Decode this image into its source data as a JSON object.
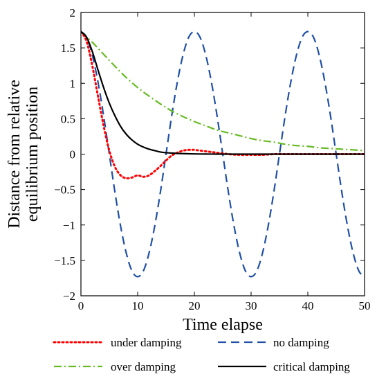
{
  "chart_data": {
    "type": "line",
    "title": "",
    "xlabel": "Time elapse",
    "ylabel_lines": [
      "Distance from relative",
      "equilibrium position"
    ],
    "xlim": [
      0,
      50
    ],
    "ylim": [
      -2,
      2
    ],
    "x_ticks": [
      0,
      10,
      20,
      30,
      40,
      50
    ],
    "y_ticks": [
      -2,
      -1.5,
      -1,
      -0.5,
      0,
      0.5,
      1,
      1.5,
      2
    ],
    "x_tick_labels": [
      "0",
      "10",
      "20",
      "30",
      "40",
      "50"
    ],
    "y_tick_labels": [
      "−2",
      "−1.5",
      "−1",
      "−0.5",
      "0",
      "0.5",
      "1",
      "1.5",
      "2"
    ],
    "grid": false,
    "legend_position": "below",
    "series": [
      {
        "name": "under damping",
        "color": "#ff0000",
        "dash": "dotted",
        "x": [
          0,
          1,
          2,
          3,
          4,
          5,
          6,
          7,
          8,
          9,
          10,
          11,
          12,
          13,
          14,
          15,
          16,
          17,
          18,
          19,
          20,
          22,
          24,
          26,
          28,
          30,
          32,
          34,
          36,
          38,
          40,
          42,
          44,
          46,
          48,
          50
        ],
        "values": [
          1.73,
          1.59,
          1.25,
          0.82,
          0.4,
          0.05,
          -0.18,
          -0.3,
          -0.34,
          -0.33,
          -0.3,
          -0.32,
          -0.3,
          -0.24,
          -0.17,
          -0.09,
          -0.02,
          0.02,
          0.05,
          0.06,
          0.06,
          0.04,
          0.02,
          0.0,
          -0.01,
          -0.01,
          -0.01,
          0.0,
          0.0,
          0.0,
          0.0,
          0.0,
          0.0,
          0.0,
          0.0,
          0.0
        ]
      },
      {
        "name": "no damping",
        "color": "#1f4fa6",
        "dash": "dashed",
        "x": [
          0,
          1,
          2,
          3,
          4,
          5,
          6,
          7,
          8,
          9,
          10,
          11,
          12,
          13,
          14,
          15,
          16,
          17,
          18,
          19,
          20,
          21,
          22,
          23,
          24,
          25,
          26,
          27,
          28,
          29,
          30,
          31,
          32,
          33,
          34,
          35,
          36,
          37,
          38,
          39,
          40,
          41,
          42,
          43,
          44,
          45,
          46,
          47,
          48,
          49,
          50
        ],
        "values": [
          1.73,
          1.65,
          1.4,
          1.02,
          0.54,
          0.0,
          -0.54,
          -1.02,
          -1.4,
          -1.65,
          -1.73,
          -1.65,
          -1.4,
          -1.02,
          -0.54,
          0.0,
          0.54,
          1.02,
          1.4,
          1.65,
          1.73,
          1.65,
          1.4,
          1.02,
          0.54,
          0.0,
          -0.54,
          -1.02,
          -1.4,
          -1.65,
          -1.73,
          -1.65,
          -1.4,
          -1.02,
          -0.54,
          0.0,
          0.54,
          1.02,
          1.4,
          1.65,
          1.73,
          1.65,
          1.4,
          1.02,
          0.54,
          0.0,
          -0.54,
          -1.02,
          -1.4,
          -1.65,
          -1.73
        ]
      },
      {
        "name": "over damping",
        "color": "#66bb22",
        "dash": "dashdot",
        "x": [
          0,
          2,
          4,
          6,
          8,
          10,
          12,
          14,
          16,
          18,
          20,
          22,
          24,
          26,
          28,
          30,
          32,
          34,
          36,
          38,
          40,
          42,
          44,
          46,
          48,
          50
        ],
        "values": [
          1.73,
          1.58,
          1.41,
          1.24,
          1.08,
          0.94,
          0.82,
          0.71,
          0.61,
          0.53,
          0.46,
          0.4,
          0.34,
          0.3,
          0.26,
          0.22,
          0.19,
          0.17,
          0.14,
          0.12,
          0.11,
          0.09,
          0.08,
          0.07,
          0.06,
          0.05
        ]
      },
      {
        "name": "critical damping",
        "color": "#000000",
        "dash": "solid",
        "x": [
          0,
          1,
          2,
          3,
          4,
          5,
          6,
          7,
          8,
          9,
          10,
          11,
          12,
          13,
          14,
          15,
          16,
          17,
          18,
          20,
          22,
          24,
          26,
          28,
          30,
          35,
          40,
          45,
          50
        ],
        "values": [
          1.73,
          1.65,
          1.45,
          1.19,
          0.94,
          0.72,
          0.54,
          0.39,
          0.28,
          0.2,
          0.14,
          0.1,
          0.07,
          0.05,
          0.03,
          0.02,
          0.015,
          0.01,
          0.007,
          0.003,
          0.001,
          0.0,
          0.0,
          0.0,
          0.0,
          0.0,
          0.0,
          0.0,
          0.0
        ]
      }
    ],
    "legend_order": [
      "under damping",
      "no damping",
      "over damping",
      "critical damping"
    ]
  }
}
